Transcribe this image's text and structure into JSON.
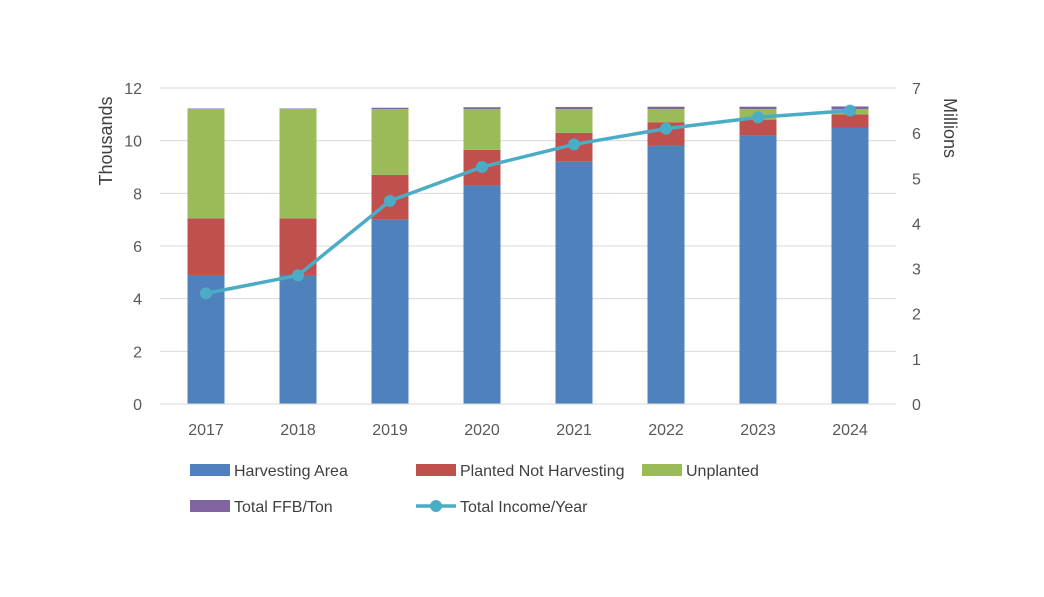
{
  "chart_data": {
    "type": "bar",
    "subtype": "stacked-bar-with-secondary-line",
    "categories": [
      "2017",
      "2018",
      "2019",
      "2020",
      "2021",
      "2022",
      "2023",
      "2024"
    ],
    "series": [
      {
        "name": "Harvesting Area",
        "type": "bar",
        "axis": "left",
        "color": "#4F81BD",
        "values": [
          4.9,
          4.9,
          7.0,
          8.3,
          9.2,
          9.8,
          10.2,
          10.5
        ]
      },
      {
        "name": "Planted Not Harvesting",
        "type": "bar",
        "axis": "left",
        "color": "#C0504D",
        "values": [
          2.15,
          2.15,
          1.7,
          1.35,
          1.1,
          0.9,
          0.6,
          0.5
        ]
      },
      {
        "name": "Unplanted",
        "type": "bar",
        "axis": "left",
        "color": "#9BBB59",
        "values": [
          4.15,
          4.15,
          2.5,
          1.55,
          0.9,
          0.5,
          0.4,
          0.2
        ]
      },
      {
        "name": "Total FFB/Ton",
        "type": "bar",
        "axis": "left",
        "color": "#8064A2",
        "values": [
          0.02,
          0.02,
          0.05,
          0.07,
          0.08,
          0.09,
          0.09,
          0.1
        ]
      },
      {
        "name": "Total Income/Year",
        "type": "line",
        "axis": "right",
        "color": "#4BACC6",
        "values": [
          2.45,
          2.85,
          4.5,
          5.25,
          5.75,
          6.1,
          6.35,
          6.5
        ]
      }
    ],
    "y_left": {
      "label": "Thousands",
      "ticks": [
        "0",
        "2",
        "4",
        "6",
        "8",
        "10",
        "12"
      ],
      "ylim": [
        0,
        12
      ]
    },
    "y_right": {
      "label": "Millions",
      "ticks": [
        "0",
        "1",
        "2",
        "3",
        "4",
        "5",
        "6",
        "7"
      ],
      "ylim": [
        0,
        7
      ]
    },
    "grid": true,
    "legend": {
      "position": "bottom",
      "items": [
        "Harvesting Area",
        "Planted Not Harvesting",
        "Unplanted",
        "Total FFB/Ton",
        "Total Income/Year"
      ]
    }
  }
}
